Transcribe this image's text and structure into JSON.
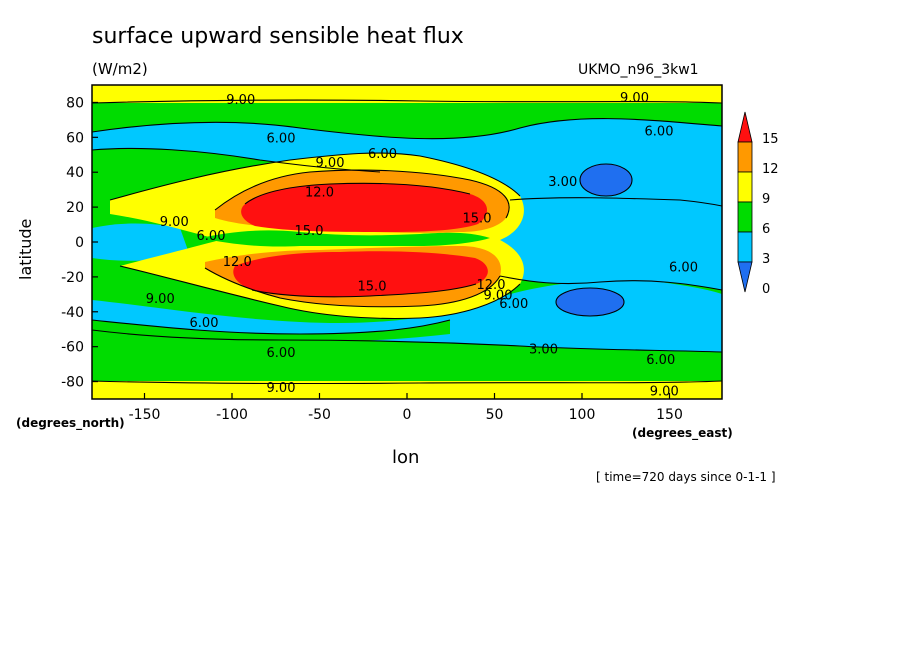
{
  "header": {
    "title": "surface upward sensible heat flux",
    "units": "(W/m2)",
    "model": "UKMO_n96_3kw1"
  },
  "footer": {
    "time_info": "[ time=720 days since 0-1-1 ]"
  },
  "chart_data": {
    "type": "heatmap",
    "title": "surface upward sensible heat flux",
    "subtitle": "(W/m2)",
    "xlabel": "lon",
    "ylabel": "latitude",
    "x_units": "(degrees_east)",
    "y_units": "(degrees_north)",
    "xlim": [
      -180,
      180
    ],
    "ylim": [
      -90,
      90
    ],
    "x_ticks": [
      -150,
      -100,
      -50,
      0,
      50,
      100,
      150
    ],
    "y_ticks": [
      80,
      60,
      40,
      20,
      0,
      -20,
      -40,
      -60,
      -80
    ],
    "colorbar": {
      "levels": [
        0,
        3,
        6,
        9,
        12,
        15
      ],
      "labels": [
        "0",
        "3",
        "6",
        "9",
        "12",
        "15"
      ],
      "colors": [
        "#1f6ff0",
        "#00c8ff",
        "#00dc00",
        "#ffff00",
        "#ff9900",
        "#ff1010"
      ],
      "placement": "right"
    },
    "contour_labels": [
      {
        "text": "9.00",
        "lon": -95,
        "lat": 82
      },
      {
        "text": "9.00",
        "lon": 130,
        "lat": 83
      },
      {
        "text": "6.00",
        "lon": -72,
        "lat": 60
      },
      {
        "text": "6.00",
        "lon": 144,
        "lat": 64
      },
      {
        "text": "9.00",
        "lon": -44,
        "lat": 46
      },
      {
        "text": "6.00",
        "lon": -14,
        "lat": 51
      },
      {
        "text": "3.00",
        "lon": 89,
        "lat": 35
      },
      {
        "text": "12.0",
        "lon": -50,
        "lat": 29
      },
      {
        "text": "9.00",
        "lon": -133,
        "lat": 12
      },
      {
        "text": "6.00",
        "lon": -112,
        "lat": 4
      },
      {
        "text": "15.0",
        "lon": -56,
        "lat": 7
      },
      {
        "text": "15.0",
        "lon": 40,
        "lat": 14
      },
      {
        "text": "12.0",
        "lon": -97,
        "lat": -11
      },
      {
        "text": "6.00",
        "lon": 158,
        "lat": -14
      },
      {
        "text": "15.0",
        "lon": -20,
        "lat": -25
      },
      {
        "text": "12.0",
        "lon": 48,
        "lat": -24
      },
      {
        "text": "9.00",
        "lon": 52,
        "lat": -30
      },
      {
        "text": "6.00",
        "lon": 61,
        "lat": -35
      },
      {
        "text": "9.00",
        "lon": -141,
        "lat": -32
      },
      {
        "text": "6.00",
        "lon": -116,
        "lat": -46
      },
      {
        "text": "3.00",
        "lon": 78,
        "lat": -61
      },
      {
        "text": "6.00",
        "lon": -72,
        "lat": -63
      },
      {
        "text": "6.00",
        "lon": 145,
        "lat": -67
      },
      {
        "text": "9.00",
        "lon": -72,
        "lat": -83
      },
      {
        "text": "9.00",
        "lon": 147,
        "lat": -85
      }
    ]
  }
}
